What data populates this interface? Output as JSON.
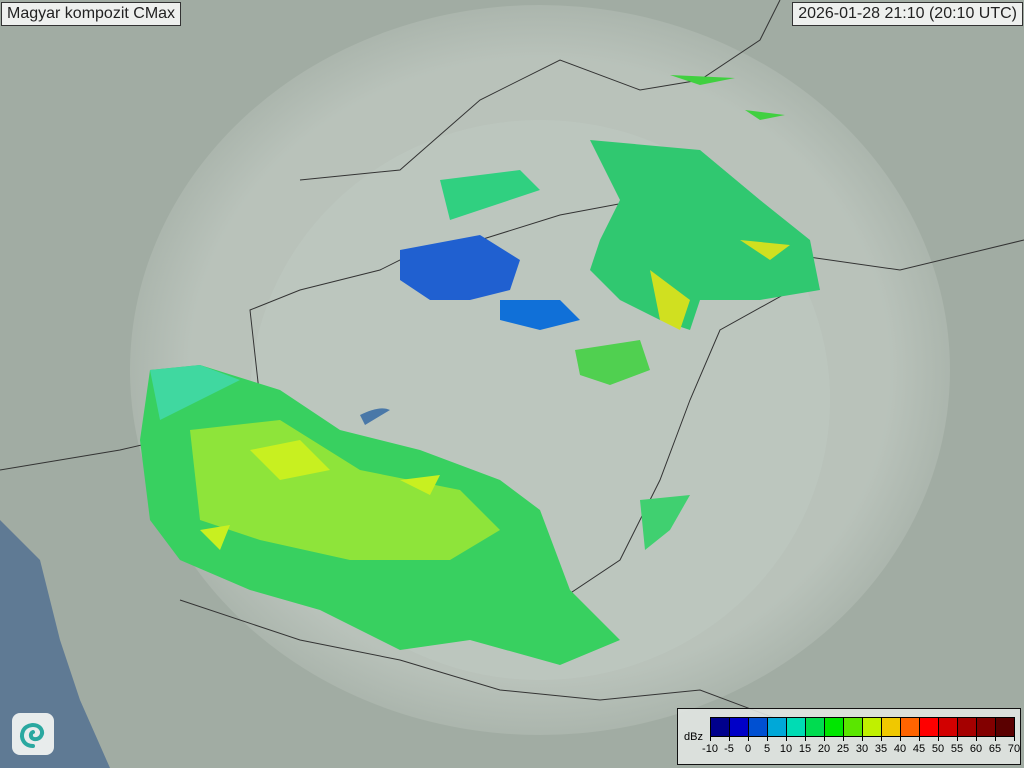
{
  "header": {
    "title": "Magyar kompozit  CMax",
    "timestamp": "2026-01-28 21:10 (20:10 UTC)"
  },
  "logo": {
    "icon": "spiral-logo-icon"
  },
  "legend": {
    "unit": "dBz",
    "ticks": [
      "-10",
      "-5",
      "0",
      "5",
      "10",
      "15",
      "20",
      "25",
      "30",
      "35",
      "40",
      "45",
      "50",
      "55",
      "60",
      "65",
      "70"
    ],
    "colors": [
      "#00008c",
      "#0000c8",
      "#0050d2",
      "#00a8d8",
      "#00dcb4",
      "#00dc50",
      "#00e600",
      "#5ae600",
      "#c0f000",
      "#f0c800",
      "#ff6400",
      "#ff0000",
      "#d20000",
      "#a50000",
      "#820000",
      "#5a0000"
    ]
  }
}
